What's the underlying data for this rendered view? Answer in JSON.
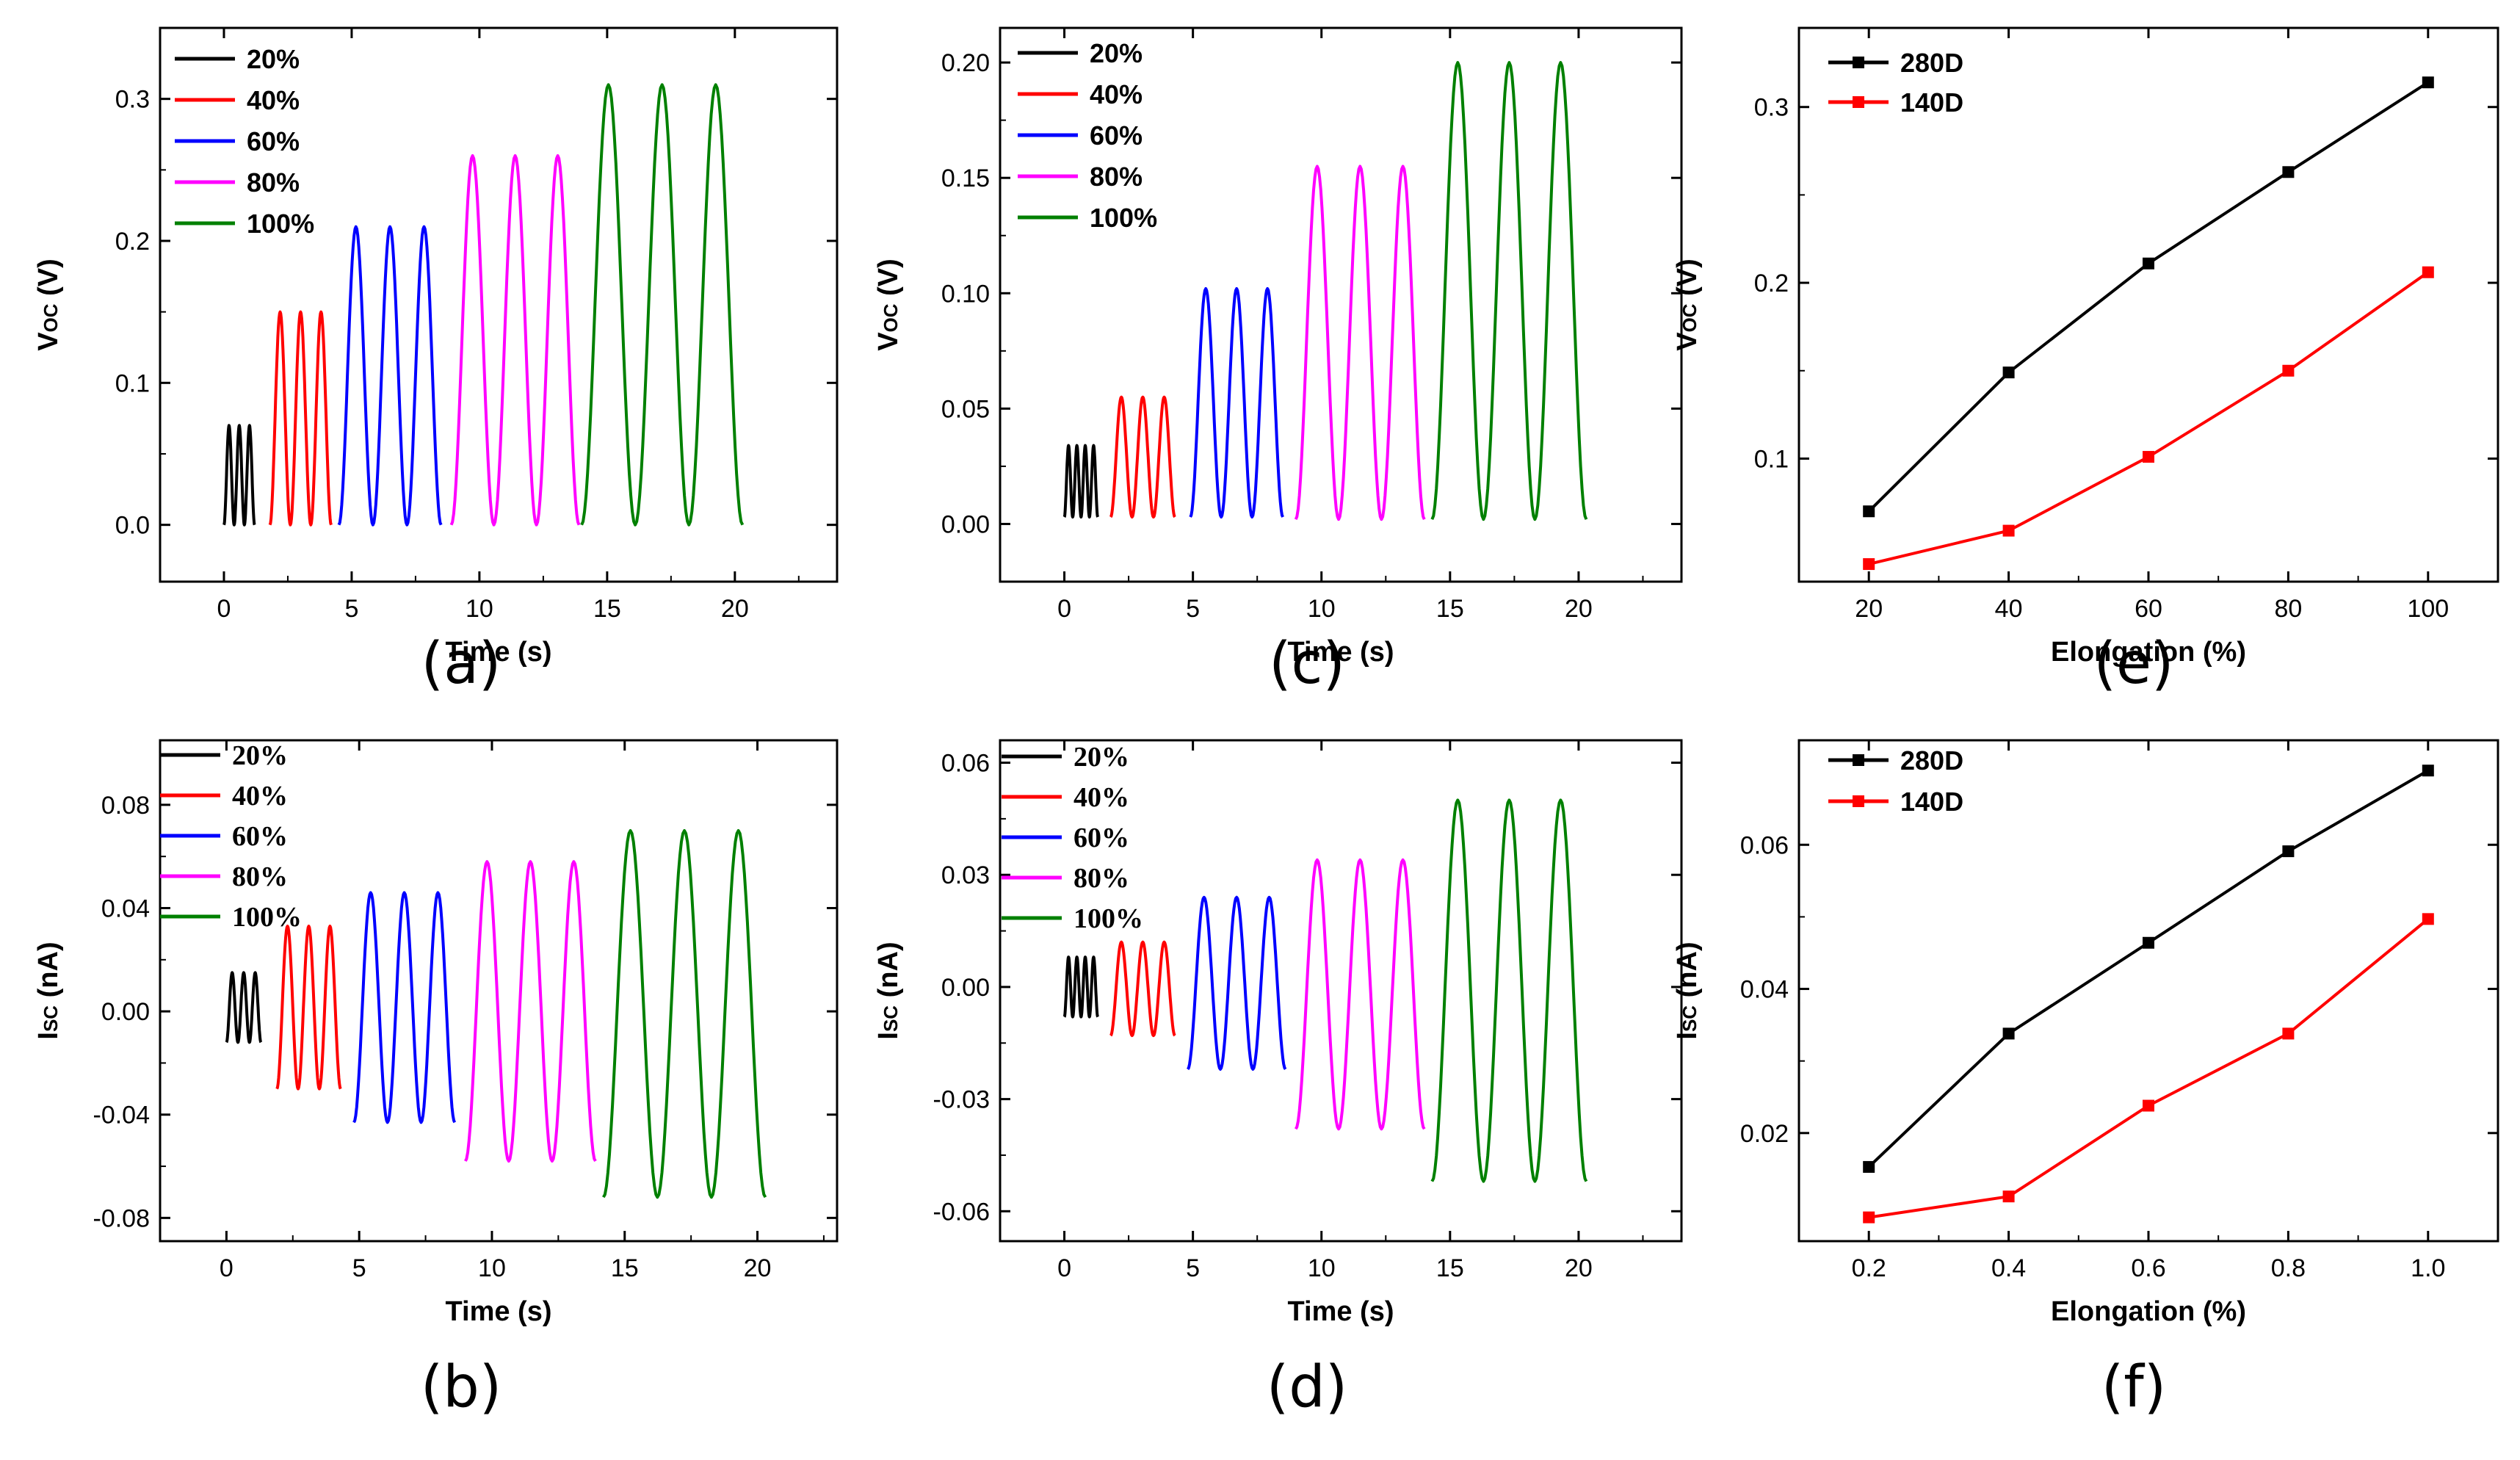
{
  "chart_data": [
    {
      "panel": "(a)",
      "type": "line",
      "xlabel": "Time (s)",
      "ylabel_main": "V",
      "ylabel_sub": "OC",
      "ylabel_unit": " (V)",
      "xlim": [
        -2.5,
        24
      ],
      "ylim": [
        -0.04,
        0.35
      ],
      "xticks": [
        0,
        5,
        10,
        15,
        20
      ],
      "yticks": [
        0.0,
        0.1,
        0.2,
        0.3
      ],
      "ytick_labels": [
        "0.0",
        "0.1",
        "0.2",
        "0.3"
      ],
      "legend_style": "sans",
      "series": [
        {
          "name": "20%",
          "color": "#000000",
          "start": 0.0,
          "end": 1.2,
          "cycles": 3,
          "min": 0.0,
          "max": 0.07
        },
        {
          "name": "40%",
          "color": "#ff0000",
          "start": 1.8,
          "end": 4.2,
          "cycles": 3,
          "min": 0.0,
          "max": 0.15
        },
        {
          "name": "60%",
          "color": "#0000ff",
          "start": 4.5,
          "end": 8.5,
          "cycles": 3,
          "min": 0.0,
          "max": 0.21
        },
        {
          "name": "80%",
          "color": "#ff00ff",
          "start": 8.9,
          "end": 13.9,
          "cycles": 3,
          "min": 0.0,
          "max": 0.26
        },
        {
          "name": "100%",
          "color": "#008000",
          "start": 14.0,
          "end": 20.3,
          "cycles": 3,
          "min": 0.0,
          "max": 0.31
        }
      ]
    },
    {
      "panel": "(c)",
      "type": "line",
      "xlabel": "Time (s)",
      "ylabel_main": "V",
      "ylabel_sub": "OC",
      "ylabel_unit": " (V)",
      "xlim": [
        -2.5,
        24
      ],
      "ylim": [
        -0.025,
        0.215
      ],
      "xticks": [
        0,
        5,
        10,
        15,
        20
      ],
      "yticks": [
        0.0,
        0.05,
        0.1,
        0.15,
        0.2
      ],
      "ytick_labels": [
        "0.00",
        "0.05",
        "0.10",
        "0.15",
        "0.20"
      ],
      "legend_style": "sans",
      "series": [
        {
          "name": "20%",
          "color": "#000000",
          "start": 0.0,
          "end": 1.3,
          "cycles": 4,
          "min": 0.003,
          "max": 0.034
        },
        {
          "name": "40%",
          "color": "#ff0000",
          "start": 1.8,
          "end": 4.3,
          "cycles": 3,
          "min": 0.003,
          "max": 0.055
        },
        {
          "name": "60%",
          "color": "#0000ff",
          "start": 4.9,
          "end": 8.5,
          "cycles": 3,
          "min": 0.003,
          "max": 0.102
        },
        {
          "name": "80%",
          "color": "#ff00ff",
          "start": 9.0,
          "end": 14.0,
          "cycles": 3,
          "min": 0.002,
          "max": 0.155
        },
        {
          "name": "100%",
          "color": "#008000",
          "start": 14.3,
          "end": 20.3,
          "cycles": 3,
          "min": 0.002,
          "max": 0.2
        }
      ]
    },
    {
      "panel": "(e)",
      "type": "line",
      "xlabel": "Elongation (%)",
      "ylabel_main": "V",
      "ylabel_sub": "OC",
      "ylabel_unit": " (V)",
      "xlim": [
        10,
        110
      ],
      "ylim": [
        0.03,
        0.345
      ],
      "xticks": [
        20,
        40,
        60,
        80,
        100
      ],
      "yticks": [
        0.1,
        0.2,
        0.3
      ],
      "ytick_labels": [
        "0.1",
        "0.2",
        "0.3"
      ],
      "legend_style": "sans",
      "markers": true,
      "x": [
        20,
        40,
        60,
        80,
        100
      ],
      "series": [
        {
          "name": "280D",
          "color": "#000000",
          "values": [
            0.07,
            0.149,
            0.211,
            0.263,
            0.314
          ]
        },
        {
          "name": "140D",
          "color": "#ff0000",
          "values": [
            0.04,
            0.059,
            0.101,
            0.15,
            0.206
          ]
        }
      ]
    },
    {
      "panel": "(b)",
      "type": "line",
      "xlabel": "Time (s)",
      "ylabel_main": "I",
      "ylabel_sub": "SC",
      "ylabel_unit": " (nA)",
      "xlim": [
        -2.5,
        23
      ],
      "ylim": [
        -0.089,
        0.105
      ],
      "xticks": [
        0,
        5,
        10,
        15,
        20
      ],
      "yticks": [
        -0.08,
        -0.04,
        0.0,
        0.04,
        0.08
      ],
      "ytick_labels": [
        "-0.08",
        "-0.04",
        "0.00",
        "0.04",
        "0.08"
      ],
      "legend_style": "serif",
      "series": [
        {
          "name": "20%",
          "color": "#000000",
          "start": 0.0,
          "end": 1.3,
          "cycles": 3,
          "min": -0.012,
          "max": 0.015
        },
        {
          "name": "40%",
          "color": "#ff0000",
          "start": 1.9,
          "end": 4.3,
          "cycles": 3,
          "min": -0.03,
          "max": 0.033
        },
        {
          "name": "60%",
          "color": "#0000ff",
          "start": 4.8,
          "end": 8.6,
          "cycles": 3,
          "min": -0.043,
          "max": 0.046
        },
        {
          "name": "80%",
          "color": "#ff00ff",
          "start": 9.0,
          "end": 13.9,
          "cycles": 3,
          "min": -0.058,
          "max": 0.058
        },
        {
          "name": "100%",
          "color": "#008000",
          "start": 14.2,
          "end": 20.3,
          "cycles": 3,
          "min": -0.072,
          "max": 0.07
        }
      ]
    },
    {
      "panel": "(d)",
      "type": "line",
      "xlabel": "Time (s)",
      "ylabel_main": "I",
      "ylabel_sub": "SC",
      "ylabel_unit": " (nA)",
      "xlim": [
        -2.5,
        24
      ],
      "ylim": [
        -0.068,
        0.066
      ],
      "xticks": [
        0,
        5,
        10,
        15,
        20
      ],
      "yticks": [
        -0.06,
        -0.03,
        0.0,
        0.03,
        0.06
      ],
      "ytick_labels": [
        "-0.06",
        "-0.03",
        "0.00",
        "0.03",
        "0.06"
      ],
      "legend_style": "serif",
      "series": [
        {
          "name": "20%",
          "color": "#000000",
          "start": 0.0,
          "end": 1.3,
          "cycles": 4,
          "min": -0.008,
          "max": 0.008
        },
        {
          "name": "40%",
          "color": "#ff0000",
          "start": 1.8,
          "end": 4.3,
          "cycles": 3,
          "min": -0.013,
          "max": 0.012
        },
        {
          "name": "60%",
          "color": "#0000ff",
          "start": 4.8,
          "end": 8.6,
          "cycles": 3,
          "min": -0.022,
          "max": 0.024
        },
        {
          "name": "80%",
          "color": "#ff00ff",
          "start": 9.0,
          "end": 14.0,
          "cycles": 3,
          "min": -0.038,
          "max": 0.034
        },
        {
          "name": "100%",
          "color": "#008000",
          "start": 14.3,
          "end": 20.3,
          "cycles": 3,
          "min": -0.052,
          "max": 0.05
        }
      ]
    },
    {
      "panel": "(f)",
      "type": "line",
      "xlabel": "Elongation (%)",
      "ylabel_main": "I",
      "ylabel_sub": "SC",
      "ylabel_unit": " (nA)",
      "xlim": [
        0.1,
        1.1
      ],
      "ylim": [
        0.005,
        0.0745
      ],
      "xticks": [
        0.2,
        0.4,
        0.6,
        0.8,
        1.0
      ],
      "xtick_labels": [
        "0.2",
        "0.4",
        "0.6",
        "0.8",
        "1.0"
      ],
      "yticks": [
        0.02,
        0.04,
        0.06
      ],
      "ytick_labels": [
        "0.02",
        "0.04",
        "0.06"
      ],
      "legend_style": "sans",
      "markers": true,
      "x": [
        0.2,
        0.4,
        0.6,
        0.8,
        1.0
      ],
      "series": [
        {
          "name": "280D",
          "color": "#000000",
          "values": [
            0.0153,
            0.0338,
            0.0464,
            0.0591,
            0.0703
          ]
        },
        {
          "name": "140D",
          "color": "#ff0000",
          "values": [
            0.0083,
            0.0112,
            0.0238,
            0.0338,
            0.0497
          ]
        }
      ]
    }
  ]
}
